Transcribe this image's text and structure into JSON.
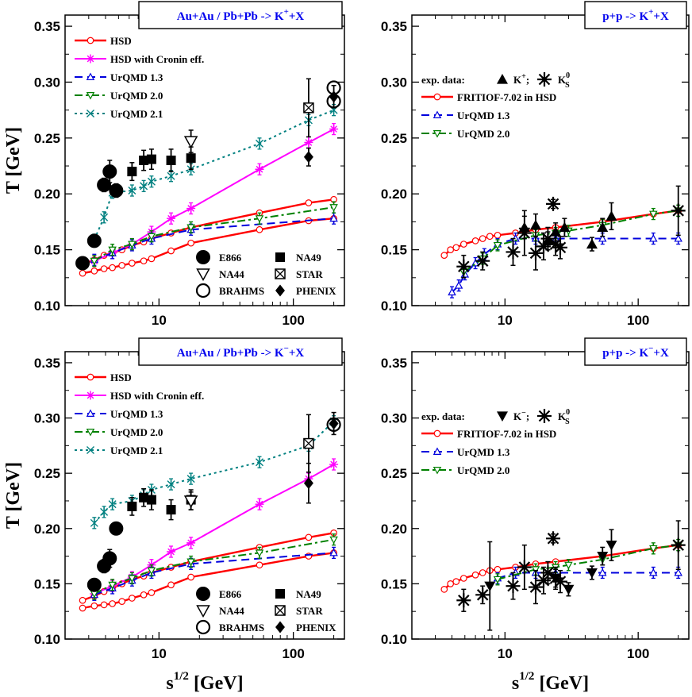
{
  "chart_data": [
    {
      "type": "scatter",
      "title": "Au+Au / Pb+Pb  -> K+X",
      "title_main": "Au+Au / Pb+Pb  -> K",
      "title_sup": "+",
      "title_tail": "+X",
      "xlabel": "s1/2 [GeV]",
      "ylabel": "T [GeV]",
      "xscale": "log",
      "xlim": [
        2,
        240
      ],
      "ylim": [
        0.1,
        0.36
      ],
      "x_ticks": [
        "10",
        "100"
      ],
      "y_ticks": [
        "0.10",
        "0.15",
        "0.20",
        "0.25",
        "0.30",
        "0.35"
      ],
      "model_legend": [
        "HSD",
        "HSD with Cronin eff.",
        "UrQMD 1.3",
        "UrQMD 2.0",
        "UrQMD 2.1"
      ],
      "data_legend": [
        "E866",
        "NA49",
        "NA44",
        "STAR",
        "BRAHMS",
        "PHENIX"
      ],
      "series": [
        {
          "name": "HSD upper",
          "style": "hsd",
          "x": [
            2.7,
            3.3,
            3.9,
            4.5,
            5.3,
            6.3,
            7.7,
            8.8,
            12.3,
            17.3,
            56,
            130,
            200
          ],
          "y": [
            0.137,
            0.141,
            0.145,
            0.147,
            0.15,
            0.154,
            0.157,
            0.16,
            0.165,
            0.17,
            0.183,
            0.192,
            0.195
          ]
        },
        {
          "name": "HSD lower",
          "style": "hsd",
          "x": [
            2.7,
            3.3,
            3.9,
            4.5,
            5.3,
            6.3,
            7.7,
            8.8,
            12.3,
            17.3,
            56,
            130,
            200
          ],
          "y": [
            0.129,
            0.131,
            0.133,
            0.134,
            0.136,
            0.138,
            0.14,
            0.142,
            0.149,
            0.156,
            0.168,
            0.176,
            0.178
          ]
        },
        {
          "name": "HSD with Cronin eff.",
          "style": "cronin",
          "x": [
            3.3,
            4.5,
            6.3,
            8.8,
            12.3,
            17.3,
            56,
            130,
            200
          ],
          "y": [
            0.14,
            0.147,
            0.155,
            0.166,
            0.178,
            0.187,
            0.222,
            0.246,
            0.258
          ]
        },
        {
          "name": "UrQMD 1.3",
          "style": "urqmd13",
          "x": [
            3.3,
            4.5,
            6.3,
            8.8,
            17.3,
            200
          ],
          "y": [
            0.141,
            0.147,
            0.154,
            0.16,
            0.168,
            0.178
          ]
        },
        {
          "name": "UrQMD 2.0",
          "style": "urqmd20",
          "x": [
            3.3,
            4.5,
            6.3,
            8.8,
            17.3,
            56,
            200
          ],
          "y": [
            0.14,
            0.15,
            0.155,
            0.162,
            0.17,
            0.178,
            0.188
          ]
        },
        {
          "name": "UrQMD 2.1",
          "style": "urqmd21",
          "x": [
            3.3,
            3.9,
            4.5,
            6.3,
            7.7,
            8.8,
            12.3,
            17.3,
            56,
            130,
            200
          ],
          "y": [
            0.159,
            0.179,
            0.201,
            0.203,
            0.207,
            0.211,
            0.216,
            0.222,
            0.245,
            0.266,
            0.275
          ]
        }
      ],
      "exp_data": [
        {
          "name": "E866",
          "marker": "circle",
          "x": [
            2.7,
            3.3,
            3.9,
            4.3,
            4.8
          ],
          "y": [
            0.138,
            0.158,
            0.208,
            0.22,
            0.203
          ],
          "err": [
            0.005,
            0.005,
            0.006,
            0.01,
            0.006
          ]
        },
        {
          "name": "NA49",
          "marker": "square",
          "x": [
            6.3,
            7.7,
            8.8,
            12.3,
            17.3
          ],
          "y": [
            0.22,
            0.23,
            0.231,
            0.23,
            0.232
          ],
          "err": [
            0.008,
            0.009,
            0.009,
            0.01,
            0.01
          ]
        },
        {
          "name": "NA44",
          "marker": "tri-down-open",
          "x": [
            17.3
          ],
          "y": [
            0.247
          ],
          "err": [
            0.01
          ]
        },
        {
          "name": "STAR",
          "marker": "square-x",
          "x": [
            130
          ],
          "y": [
            0.277
          ],
          "err": [
            0.026
          ]
        },
        {
          "name": "BRAHMS",
          "marker": "circle-open",
          "x": [
            200,
            200
          ],
          "y": [
            0.295,
            0.283
          ],
          "err": [
            0,
            0
          ]
        },
        {
          "name": "PHENIX",
          "marker": "diamond",
          "x": [
            130,
            200
          ],
          "y": [
            0.233,
            0.287
          ],
          "err": [
            0.008,
            0.01
          ]
        }
      ]
    },
    {
      "type": "scatter",
      "title": "p+p -> K+X",
      "title_main": "p+p -> K",
      "title_sup": "+",
      "title_tail": "+X",
      "xlabel": "s1/2 [GeV]",
      "ylabel": "T [GeV]",
      "xscale": "log",
      "xlim": [
        2,
        240
      ],
      "ylim": [
        0.1,
        0.36
      ],
      "x_ticks": [
        "10",
        "100"
      ],
      "y_ticks": [
        "0.10",
        "0.15",
        "0.20",
        "0.25",
        "0.30",
        "0.35"
      ],
      "legend_exp_label": "exp. data:",
      "legend_exp_k": "K",
      "legend_exp_k_sup": "+",
      "legend_exp_k0": "K",
      "legend_exp_k0_sup": "0",
      "legend_exp_k0_sub": "S",
      "model_legend": [
        "FRITIOF-7.02 in HSD",
        "UrQMD 1.3",
        "UrQMD 2.0"
      ],
      "series": [
        {
          "name": "FRITIOF-7.02 in HSD",
          "style": "hsd",
          "x": [
            3.5,
            3.9,
            4.3,
            4.9,
            6.0,
            6.8,
            7.7,
            8.8,
            12,
            17,
            24,
            54,
            130,
            200
          ],
          "y": [
            0.145,
            0.15,
            0.152,
            0.155,
            0.158,
            0.16,
            0.162,
            0.163,
            0.165,
            0.168,
            0.17,
            0.175,
            0.182,
            0.185
          ]
        },
        {
          "name": "UrQMD 1.3",
          "style": "urqmd13",
          "x": [
            4.0,
            4.5,
            5.0,
            6.0,
            7.0,
            8.8,
            12,
            17,
            24,
            54,
            130,
            200
          ],
          "y": [
            0.112,
            0.118,
            0.128,
            0.138,
            0.146,
            0.155,
            0.16,
            0.16,
            0.16,
            0.16,
            0.16,
            0.16
          ]
        },
        {
          "name": "UrQMD 2.0",
          "style": "urqmd20",
          "x": [
            4.9,
            6.8,
            8.8,
            17,
            24,
            30,
            54,
            130,
            200
          ],
          "y": [
            0.13,
            0.142,
            0.154,
            0.163,
            0.165,
            0.167,
            0.172,
            0.182,
            0.185
          ]
        }
      ],
      "exp_data": [
        {
          "name": "K+",
          "marker": "tri-up",
          "x": [
            14,
            17,
            21,
            24,
            28,
            45,
            54,
            63
          ],
          "y": [
            0.17,
            0.172,
            0.158,
            0.166,
            0.17,
            0.155,
            0.17,
            0.18
          ],
          "err": [
            0.01,
            0.01,
            0.008,
            0.008,
            0.008,
            0.006,
            0.008,
            0.012
          ]
        },
        {
          "name": "K0S",
          "marker": "star",
          "x": [
            4.9,
            6.8,
            11.5,
            14,
            17,
            19.5,
            21,
            23,
            24,
            26,
            200
          ],
          "y": [
            0.135,
            0.14,
            0.148,
            0.165,
            0.147,
            0.153,
            0.16,
            0.191,
            0.155,
            0.152,
            0.185
          ],
          "err": [
            0.01,
            0.008,
            0.012,
            0.02,
            0.015,
            0.012,
            0.01,
            0.004,
            0.01,
            0.01,
            0.022
          ]
        }
      ]
    },
    {
      "type": "scatter",
      "title": "Au+Au / Pb+Pb  -> K-X",
      "title_main": "Au+Au / Pb+Pb  -> K",
      "title_sup": "−",
      "title_tail": "+X",
      "xlabel": "s1/2 [GeV]",
      "ylabel": "T [GeV]",
      "xscale": "log",
      "xlim": [
        2,
        240
      ],
      "ylim": [
        0.1,
        0.36
      ],
      "x_ticks": [
        "10",
        "100"
      ],
      "y_ticks": [
        "0.10",
        "0.15",
        "0.20",
        "0.25",
        "0.30",
        "0.35"
      ],
      "model_legend": [
        "HSD",
        "HSD with Cronin eff.",
        "UrQMD 1.3",
        "UrQMD 2.0",
        "UrQMD 2.1"
      ],
      "data_legend": [
        "E866",
        "NA49",
        "NA44",
        "STAR",
        "BRAHMS",
        "PHENIX"
      ],
      "series": [
        {
          "name": "HSD upper",
          "style": "hsd",
          "x": [
            2.7,
            3.3,
            3.9,
            4.5,
            5.3,
            6.3,
            7.7,
            8.8,
            12.3,
            17.3,
            56,
            130,
            200
          ],
          "y": [
            0.135,
            0.139,
            0.143,
            0.146,
            0.15,
            0.154,
            0.157,
            0.16,
            0.165,
            0.17,
            0.183,
            0.192,
            0.196
          ]
        },
        {
          "name": "HSD lower",
          "style": "hsd",
          "x": [
            2.7,
            3.3,
            3.9,
            4.5,
            5.3,
            6.3,
            7.7,
            8.8,
            12.3,
            17.3,
            56,
            130,
            200
          ],
          "y": [
            0.128,
            0.13,
            0.131,
            0.132,
            0.134,
            0.137,
            0.14,
            0.142,
            0.149,
            0.156,
            0.167,
            0.175,
            0.178
          ]
        },
        {
          "name": "HSD with Cronin eff.",
          "style": "cronin",
          "x": [
            3.3,
            4.5,
            6.3,
            8.8,
            12.3,
            17.3,
            56,
            130,
            200
          ],
          "y": [
            0.141,
            0.148,
            0.156,
            0.167,
            0.179,
            0.187,
            0.222,
            0.245,
            0.258
          ]
        },
        {
          "name": "UrQMD 1.3",
          "style": "urqmd13",
          "x": [
            3.3,
            4.5,
            6.3,
            8.8,
            17.3,
            200
          ],
          "y": [
            0.14,
            0.146,
            0.153,
            0.16,
            0.168,
            0.178
          ]
        },
        {
          "name": "UrQMD 2.0",
          "style": "urqmd20",
          "x": [
            3.3,
            4.5,
            6.3,
            8.8,
            17.3,
            56,
            200
          ],
          "y": [
            0.141,
            0.149,
            0.155,
            0.162,
            0.17,
            0.178,
            0.19
          ]
        },
        {
          "name": "UrQMD 2.1",
          "style": "urqmd21",
          "x": [
            3.3,
            3.9,
            4.5,
            6.3,
            7.7,
            8.8,
            12.3,
            17.3,
            56,
            130,
            200
          ],
          "y": [
            0.205,
            0.215,
            0.222,
            0.225,
            0.23,
            0.235,
            0.24,
            0.245,
            0.26,
            0.275,
            0.297
          ]
        }
      ],
      "exp_data": [
        {
          "name": "E866",
          "marker": "circle",
          "x": [
            3.3,
            3.9,
            4.3,
            4.8
          ],
          "y": [
            0.149,
            0.166,
            0.173,
            0.2
          ],
          "err": [
            0.005,
            0.006,
            0.008,
            0.005
          ]
        },
        {
          "name": "NA49",
          "marker": "square",
          "x": [
            6.3,
            7.7,
            8.8,
            12.3,
            17.3
          ],
          "y": [
            0.22,
            0.228,
            0.226,
            0.217,
            0.226
          ],
          "err": [
            0.008,
            0.008,
            0.009,
            0.009,
            0.009
          ]
        },
        {
          "name": "NA44",
          "marker": "tri-down-open",
          "x": [
            17.3
          ],
          "y": [
            0.225
          ],
          "err": [
            0.008
          ]
        },
        {
          "name": "STAR",
          "marker": "square-x",
          "x": [
            130
          ],
          "y": [
            0.277
          ],
          "err": [
            0.026
          ]
        },
        {
          "name": "BRAHMS",
          "marker": "circle-open",
          "x": [
            200
          ],
          "y": [
            0.294
          ],
          "err": [
            0
          ]
        },
        {
          "name": "PHENIX",
          "marker": "diamond",
          "x": [
            130,
            200
          ],
          "y": [
            0.241,
            0.295
          ],
          "err": [
            0.018,
            0.01
          ]
        }
      ]
    },
    {
      "type": "scatter",
      "title": "p+p -> K-X",
      "title_main": "p+p -> K",
      "title_sup": "−",
      "title_tail": "+X",
      "xlabel": "s1/2 [GeV]",
      "ylabel": "T [GeV]",
      "xscale": "log",
      "xlim": [
        2,
        240
      ],
      "ylim": [
        0.1,
        0.36
      ],
      "x_ticks": [
        "10",
        "100"
      ],
      "y_ticks": [
        "0.10",
        "0.15",
        "0.20",
        "0.25",
        "0.30",
        "0.35"
      ],
      "legend_exp_label": "exp. data:",
      "legend_exp_k": "K",
      "legend_exp_k_sup": "−",
      "legend_exp_k0": "K",
      "legend_exp_k0_sup": "0",
      "legend_exp_k0_sub": "S",
      "model_legend": [
        "FRITIOF-7.02 in HSD",
        "UrQMD 1.3",
        "UrQMD 2.0"
      ],
      "series": [
        {
          "name": "FRITIOF-7.02 in HSD",
          "style": "hsd",
          "x": [
            3.5,
            3.9,
            4.3,
            4.9,
            6.0,
            6.8,
            7.7,
            8.8,
            12,
            17,
            24,
            54,
            130,
            200
          ],
          "y": [
            0.145,
            0.15,
            0.152,
            0.155,
            0.158,
            0.16,
            0.162,
            0.163,
            0.165,
            0.168,
            0.17,
            0.175,
            0.182,
            0.185
          ]
        },
        {
          "name": "UrQMD 1.3",
          "style": "urqmd13",
          "x": [
            8.8,
            12,
            17,
            24,
            54,
            130,
            200
          ],
          "y": [
            0.155,
            0.16,
            0.16,
            0.16,
            0.16,
            0.16,
            0.16
          ]
        },
        {
          "name": "UrQMD 2.0",
          "style": "urqmd20",
          "x": [
            8.8,
            17,
            24,
            30,
            54,
            130,
            200
          ],
          "y": [
            0.154,
            0.163,
            0.165,
            0.167,
            0.172,
            0.182,
            0.185
          ]
        }
      ],
      "exp_data": [
        {
          "name": "K-",
          "marker": "tri-down",
          "x": [
            7.7,
            24,
            30,
            45,
            54,
            63
          ],
          "y": [
            0.148,
            0.155,
            0.145,
            0.16,
            0.175,
            0.185
          ],
          "err": [
            0.04,
            0.008,
            0.006,
            0.006,
            0.008,
            0.014
          ]
        },
        {
          "name": "K0S",
          "marker": "star",
          "x": [
            4.9,
            6.8,
            11.5,
            14,
            17,
            19.5,
            21,
            23,
            24,
            26,
            200
          ],
          "y": [
            0.135,
            0.14,
            0.148,
            0.165,
            0.147,
            0.153,
            0.16,
            0.191,
            0.155,
            0.152,
            0.185
          ],
          "err": [
            0.01,
            0.008,
            0.012,
            0.02,
            0.015,
            0.012,
            0.01,
            0.004,
            0.01,
            0.01,
            0.022
          ]
        }
      ]
    }
  ]
}
